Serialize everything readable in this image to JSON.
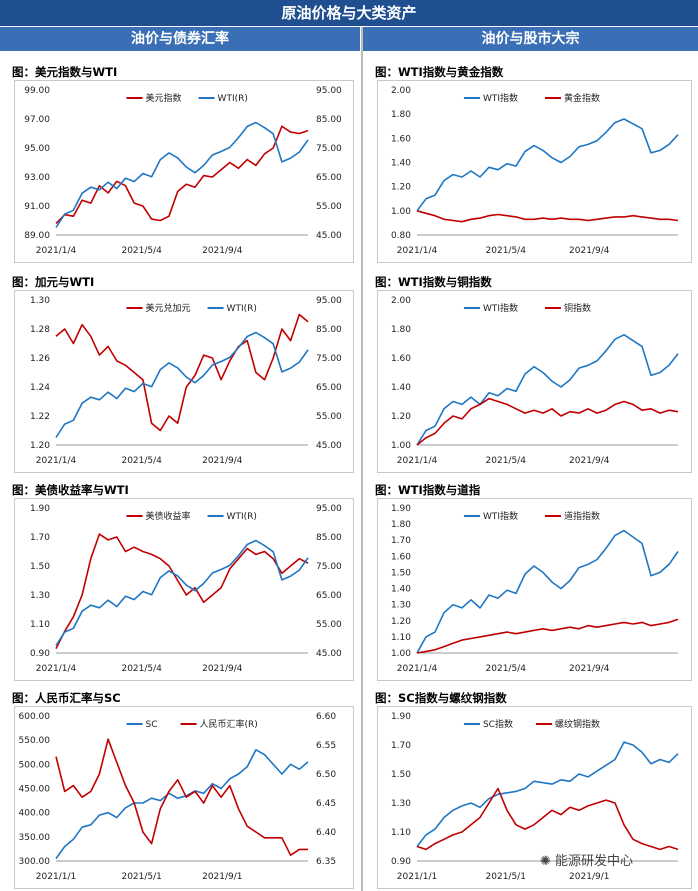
{
  "banner": "原油价格与大类资产",
  "sections": {
    "left": "油价与债券汇率",
    "right": "油价与股市大宗"
  },
  "watermark": "能源研发中心",
  "colors": {
    "red": "#c00000",
    "blue": "#1f77c4",
    "banner": "#1f4f8f",
    "header": "#3a6fb5"
  },
  "chart_data": [
    {
      "type": "line",
      "title": "图：美元指数与WTI",
      "xticks": [
        "2021/1/4",
        "2021/5/4",
        "2021/9/4"
      ],
      "ylim": [
        89,
        99
      ],
      "yticks": [
        "89.00",
        "91.00",
        "93.00",
        "95.00",
        "97.00",
        "99.00"
      ],
      "ylim_right": [
        45,
        95
      ],
      "yticks_right": [
        "45.00",
        "55.00",
        "65.00",
        "75.00",
        "85.00",
        "95.00"
      ],
      "legend": "top-center",
      "series": [
        {
          "name": "美元指数",
          "color": "#c00000",
          "axis": "left",
          "values": [
            89.8,
            90.4,
            90.3,
            91.4,
            91.2,
            92.4,
            91.9,
            92.7,
            92.4,
            91.2,
            91.0,
            90.1,
            90.0,
            90.3,
            92.0,
            92.5,
            92.3,
            93.1,
            93.0,
            93.5,
            94.0,
            93.6,
            94.2,
            93.8,
            94.6,
            95.0,
            96.5,
            96.1,
            96.0,
            96.2
          ]
        },
        {
          "name": "WTI(R)",
          "color": "#1f77c4",
          "axis": "right",
          "values": [
            47.6,
            52.2,
            53.5,
            59.4,
            61.5,
            60.6,
            63.2,
            61.0,
            64.6,
            63.4,
            66.2,
            65.1,
            71.0,
            73.3,
            71.6,
            68.4,
            66.5,
            69.0,
            72.6,
            73.8,
            75.2,
            78.6,
            82.4,
            83.8,
            82.0,
            79.9,
            70.2,
            71.5,
            73.6,
            77.8
          ]
        }
      ]
    },
    {
      "type": "line",
      "title": "图：WTI指数与黄金指数",
      "xticks": [
        "2021/1/4",
        "2021/5/4",
        "2021/9/4"
      ],
      "ylim": [
        0.8,
        2.0
      ],
      "yticks": [
        "0.80",
        "1.00",
        "1.20",
        "1.40",
        "1.60",
        "1.80",
        "2.00"
      ],
      "legend": "top-left",
      "series": [
        {
          "name": "WTI指数",
          "color": "#1f77c4",
          "values": [
            1.0,
            1.1,
            1.13,
            1.25,
            1.3,
            1.28,
            1.33,
            1.28,
            1.36,
            1.34,
            1.39,
            1.37,
            1.49,
            1.54,
            1.5,
            1.44,
            1.4,
            1.45,
            1.53,
            1.55,
            1.58,
            1.65,
            1.73,
            1.76,
            1.72,
            1.68,
            1.48,
            1.5,
            1.55,
            1.63
          ]
        },
        {
          "name": "黄金指数",
          "color": "#c00000",
          "values": [
            1.0,
            0.98,
            0.96,
            0.93,
            0.92,
            0.91,
            0.93,
            0.94,
            0.96,
            0.97,
            0.96,
            0.95,
            0.93,
            0.93,
            0.94,
            0.93,
            0.94,
            0.93,
            0.93,
            0.92,
            0.93,
            0.94,
            0.95,
            0.95,
            0.96,
            0.95,
            0.94,
            0.93,
            0.93,
            0.92
          ]
        }
      ]
    },
    {
      "type": "line",
      "title": "图：加元与WTI",
      "xticks": [
        "2021/1/4",
        "2021/5/4",
        "2021/9/4"
      ],
      "ylim": [
        1.2,
        1.3
      ],
      "yticks": [
        "1.20",
        "1.22",
        "1.24",
        "1.26",
        "1.28",
        "1.30"
      ],
      "ylim_right": [
        45,
        95
      ],
      "yticks_right": [
        "45.00",
        "55.00",
        "65.00",
        "75.00",
        "85.00",
        "95.00"
      ],
      "legend": "top-center",
      "series": [
        {
          "name": "美元兑加元",
          "color": "#c00000",
          "axis": "left",
          "values": [
            1.275,
            1.28,
            1.27,
            1.283,
            1.275,
            1.262,
            1.268,
            1.258,
            1.255,
            1.25,
            1.245,
            1.215,
            1.21,
            1.22,
            1.215,
            1.24,
            1.248,
            1.262,
            1.26,
            1.245,
            1.258,
            1.268,
            1.272,
            1.25,
            1.245,
            1.26,
            1.28,
            1.272,
            1.29,
            1.285
          ]
        },
        {
          "name": "WTI(R)",
          "color": "#1f77c4",
          "axis": "right",
          "values": [
            47.6,
            52.2,
            53.5,
            59.4,
            61.5,
            60.6,
            63.2,
            61.0,
            64.6,
            63.4,
            66.2,
            65.1,
            71.0,
            73.3,
            71.6,
            68.4,
            66.5,
            69.0,
            72.6,
            73.8,
            75.2,
            78.6,
            82.4,
            83.8,
            82.0,
            79.9,
            70.2,
            71.5,
            73.6,
            77.8
          ]
        }
      ]
    },
    {
      "type": "line",
      "title": "图：WTI指数与铜指数",
      "xticks": [
        "2021/1/4",
        "2021/5/4",
        "2021/9/4"
      ],
      "ylim": [
        1.0,
        2.0
      ],
      "yticks": [
        "1.00",
        "1.20",
        "1.40",
        "1.60",
        "1.80",
        "2.00"
      ],
      "legend": "top-left",
      "series": [
        {
          "name": "WTI指数",
          "color": "#1f77c4",
          "values": [
            1.0,
            1.1,
            1.13,
            1.25,
            1.3,
            1.28,
            1.33,
            1.28,
            1.36,
            1.34,
            1.39,
            1.37,
            1.49,
            1.54,
            1.5,
            1.44,
            1.4,
            1.45,
            1.53,
            1.55,
            1.58,
            1.65,
            1.73,
            1.76,
            1.72,
            1.68,
            1.48,
            1.5,
            1.55,
            1.63
          ]
        },
        {
          "name": "铜指数",
          "color": "#c00000",
          "values": [
            1.0,
            1.05,
            1.08,
            1.15,
            1.2,
            1.18,
            1.25,
            1.28,
            1.32,
            1.3,
            1.28,
            1.25,
            1.22,
            1.24,
            1.22,
            1.25,
            1.2,
            1.23,
            1.22,
            1.25,
            1.22,
            1.24,
            1.28,
            1.3,
            1.28,
            1.24,
            1.25,
            1.22,
            1.24,
            1.23
          ]
        }
      ]
    },
    {
      "type": "line",
      "title": "图：美债收益率与WTI",
      "xticks": [
        "2021/1/4",
        "2021/5/4",
        "2021/9/4"
      ],
      "ylim": [
        0.9,
        1.9
      ],
      "yticks": [
        "0.90",
        "1.10",
        "1.30",
        "1.50",
        "1.70",
        "1.90"
      ],
      "ylim_right": [
        45,
        95
      ],
      "yticks_right": [
        "45.00",
        "55.00",
        "65.00",
        "75.00",
        "85.00",
        "95.00"
      ],
      "legend": "top-center",
      "series": [
        {
          "name": "美债收益率",
          "color": "#c00000",
          "axis": "left",
          "values": [
            0.93,
            1.05,
            1.15,
            1.3,
            1.55,
            1.72,
            1.68,
            1.7,
            1.6,
            1.63,
            1.6,
            1.58,
            1.55,
            1.5,
            1.4,
            1.3,
            1.35,
            1.25,
            1.3,
            1.35,
            1.48,
            1.55,
            1.62,
            1.58,
            1.6,
            1.55,
            1.45,
            1.5,
            1.55,
            1.52
          ]
        },
        {
          "name": "WTI(R)",
          "color": "#1f77c4",
          "axis": "right",
          "values": [
            47.6,
            52.2,
            53.5,
            59.4,
            61.5,
            60.6,
            63.2,
            61.0,
            64.6,
            63.4,
            66.2,
            65.1,
            71.0,
            73.3,
            71.6,
            68.4,
            66.5,
            69.0,
            72.6,
            73.8,
            75.2,
            78.6,
            82.4,
            83.8,
            82.0,
            79.9,
            70.2,
            71.5,
            73.6,
            77.8
          ]
        }
      ]
    },
    {
      "type": "line",
      "title": "图：WTI指数与道指",
      "xticks": [
        "2021/1/4",
        "2021/5/4",
        "2021/9/4"
      ],
      "ylim": [
        1.0,
        1.9
      ],
      "yticks": [
        "1.00",
        "1.10",
        "1.20",
        "1.30",
        "1.40",
        "1.50",
        "1.60",
        "1.70",
        "1.80",
        "1.90"
      ],
      "legend": "top-left",
      "series": [
        {
          "name": "WTI指数",
          "color": "#1f77c4",
          "values": [
            1.0,
            1.1,
            1.13,
            1.25,
            1.3,
            1.28,
            1.33,
            1.28,
            1.36,
            1.34,
            1.39,
            1.37,
            1.49,
            1.54,
            1.5,
            1.44,
            1.4,
            1.45,
            1.53,
            1.55,
            1.58,
            1.65,
            1.73,
            1.76,
            1.72,
            1.68,
            1.48,
            1.5,
            1.55,
            1.63
          ]
        },
        {
          "name": "道指指数",
          "color": "#c00000",
          "values": [
            1.0,
            1.01,
            1.02,
            1.04,
            1.06,
            1.08,
            1.09,
            1.1,
            1.11,
            1.12,
            1.13,
            1.12,
            1.13,
            1.14,
            1.15,
            1.14,
            1.15,
            1.16,
            1.15,
            1.17,
            1.16,
            1.17,
            1.18,
            1.19,
            1.18,
            1.19,
            1.17,
            1.18,
            1.19,
            1.21
          ]
        }
      ]
    },
    {
      "type": "line",
      "title": "图：人民币汇率与SC",
      "xticks": [
        "2021/1/1",
        "2021/5/1",
        "2021/9/1"
      ],
      "ylim": [
        300,
        600
      ],
      "yticks": [
        "300.00",
        "350.00",
        "400.00",
        "450.00",
        "500.00",
        "550.00",
        "600.00"
      ],
      "ylim_right": [
        6.35,
        6.6
      ],
      "yticks_right": [
        "6.35",
        "6.40",
        "6.45",
        "6.50",
        "6.55",
        "6.60"
      ],
      "legend": "top-center",
      "series": [
        {
          "name": "SC",
          "color": "#1f77c4",
          "axis": "left",
          "values": [
            305,
            330,
            345,
            370,
            375,
            395,
            400,
            390,
            410,
            420,
            420,
            430,
            425,
            440,
            430,
            435,
            445,
            440,
            460,
            450,
            470,
            480,
            495,
            530,
            520,
            500,
            480,
            500,
            490,
            505
          ]
        },
        {
          "name": "人民币汇率(R)",
          "color": "#c00000",
          "axis": "right",
          "values": [
            6.53,
            6.47,
            6.48,
            6.46,
            6.47,
            6.5,
            6.56,
            6.52,
            6.48,
            6.45,
            6.4,
            6.38,
            6.44,
            6.47,
            6.49,
            6.46,
            6.47,
            6.45,
            6.48,
            6.46,
            6.48,
            6.44,
            6.41,
            6.4,
            6.39,
            6.39,
            6.39,
            6.36,
            6.37,
            6.37
          ]
        }
      ]
    },
    {
      "type": "line",
      "title": "图：SC指数与螺纹钢指数",
      "xticks": [
        "2021/1/1",
        "2021/5/1",
        "2021/9/1"
      ],
      "ylim": [
        0.9,
        1.9
      ],
      "yticks": [
        "0.90",
        "1.10",
        "1.30",
        "1.50",
        "1.70",
        "1.90"
      ],
      "legend": "top-left",
      "series": [
        {
          "name": "SC指数",
          "color": "#1f77c4",
          "values": [
            1.0,
            1.08,
            1.12,
            1.2,
            1.25,
            1.28,
            1.3,
            1.27,
            1.33,
            1.36,
            1.37,
            1.38,
            1.4,
            1.45,
            1.44,
            1.43,
            1.46,
            1.45,
            1.5,
            1.48,
            1.52,
            1.56,
            1.6,
            1.72,
            1.7,
            1.65,
            1.57,
            1.6,
            1.58,
            1.64
          ]
        },
        {
          "name": "螺纹钢指数",
          "color": "#c00000",
          "values": [
            1.0,
            0.98,
            1.02,
            1.05,
            1.08,
            1.1,
            1.15,
            1.2,
            1.3,
            1.4,
            1.25,
            1.15,
            1.12,
            1.15,
            1.2,
            1.25,
            1.22,
            1.27,
            1.25,
            1.28,
            1.3,
            1.32,
            1.3,
            1.15,
            1.05,
            1.02,
            1.0,
            0.98,
            1.0,
            0.98
          ]
        }
      ]
    }
  ]
}
